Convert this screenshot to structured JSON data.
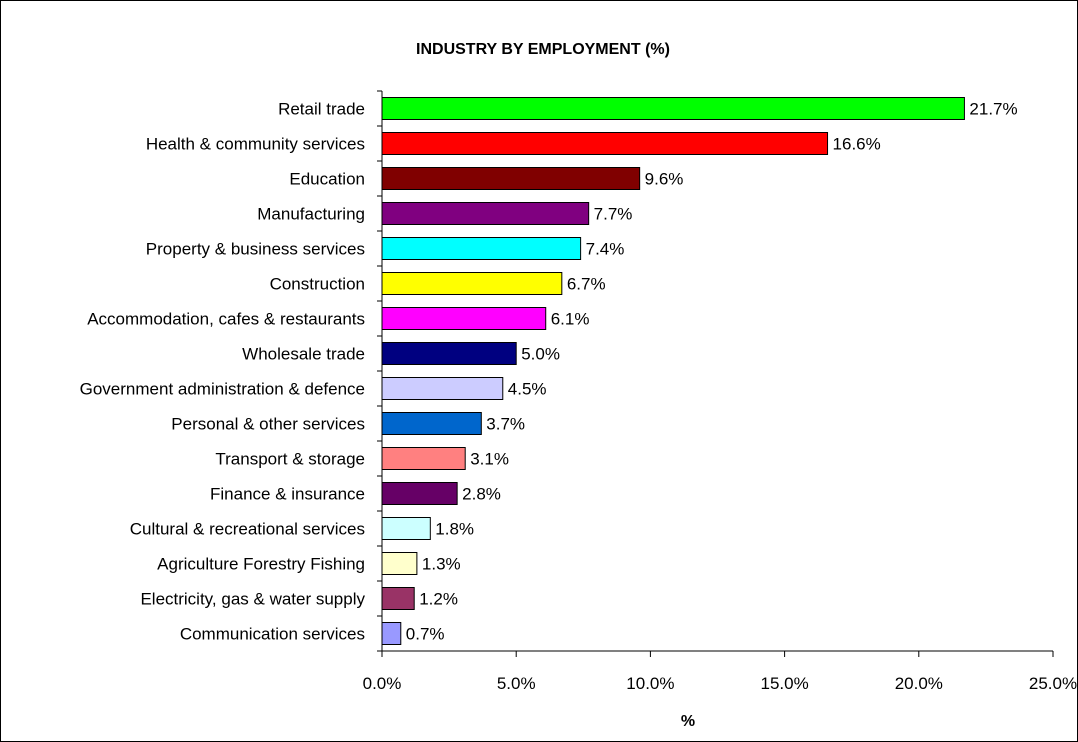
{
  "chart_data": {
    "type": "bar",
    "orientation": "horizontal",
    "title": "INDUSTRY BY EMPLOYMENT (%)",
    "xlabel": "%",
    "ylabel": "",
    "xlim": [
      0,
      25
    ],
    "x_ticks": [
      0,
      5,
      10,
      15,
      20,
      25
    ],
    "x_tick_labels": [
      "0.0%",
      "5.0%",
      "10.0%",
      "15.0%",
      "20.0%",
      "25.0%"
    ],
    "grid": false,
    "legend": "none",
    "categories": [
      "Retail trade",
      "Health & community services",
      "Education",
      "Manufacturing",
      "Property & business services",
      "Construction",
      "Accommodation, cafes & restaurants",
      "Wholesale trade",
      "Government administration & defence",
      "Personal & other services",
      "Transport & storage",
      "Finance & insurance",
      "Cultural & recreational services",
      "Agriculture Forestry Fishing",
      "Electricity, gas & water supply",
      "Communication services"
    ],
    "values": [
      21.7,
      16.6,
      9.6,
      7.7,
      7.4,
      6.7,
      6.1,
      5.0,
      4.5,
      3.7,
      3.1,
      2.8,
      1.8,
      1.3,
      1.2,
      0.7
    ],
    "value_labels": [
      "21.7%",
      "16.6%",
      "9.6%",
      "7.7%",
      "7.4%",
      "6.7%",
      "6.1%",
      "5.0%",
      "4.5%",
      "3.7%",
      "3.1%",
      "2.8%",
      "1.8%",
      "1.3%",
      "1.2%",
      "0.7%"
    ],
    "colors": [
      "#00ff00",
      "#ff0000",
      "#800000",
      "#800080",
      "#00ffff",
      "#ffff00",
      "#ff00ff",
      "#000080",
      "#ccccff",
      "#0066cc",
      "#ff8080",
      "#660066",
      "#ccffff",
      "#ffffcc",
      "#993366",
      "#9999ff"
    ]
  }
}
